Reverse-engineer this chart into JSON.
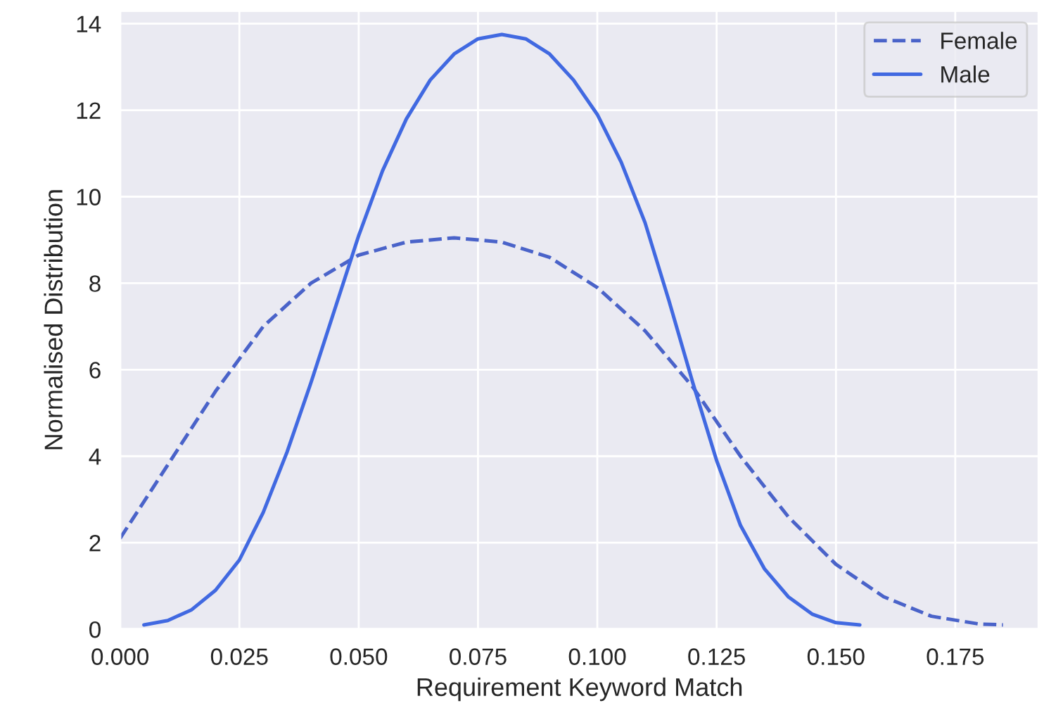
{
  "chart_data": {
    "type": "line",
    "xlabel": "Requirement Keyword Match",
    "ylabel": "Normalised Distribution",
    "xlim": [
      0,
      0.1925
    ],
    "xticks": [
      {
        "value": 0,
        "label": "0.000"
      },
      {
        "value": 0.025,
        "label": "0.025"
      },
      {
        "value": 0.05,
        "label": "0.050"
      },
      {
        "value": 0.075,
        "label": "0.075"
      },
      {
        "value": 0.1,
        "label": "0.100"
      },
      {
        "value": 0.125,
        "label": "0.125"
      },
      {
        "value": 0.15,
        "label": "0.150"
      },
      {
        "value": 0.175,
        "label": "0.175"
      }
    ],
    "ylim": [
      0,
      14.3
    ],
    "yticks": [
      0,
      2,
      4,
      6,
      8,
      10,
      12,
      14
    ],
    "grid": true,
    "legend": "top right",
    "series": [
      {
        "name": "Female",
        "color": "#4a63c9",
        "line_style": "dashed",
        "x": [
          0,
          0.01,
          0.02,
          0.03,
          0.04,
          0.05,
          0.06,
          0.07,
          0.08,
          0.09,
          0.1,
          0.11,
          0.12,
          0.13,
          0.14,
          0.15,
          0.16,
          0.17,
          0.18,
          0.185
        ],
        "values": [
          2.1,
          3.8,
          5.5,
          7.0,
          8.0,
          8.65,
          8.95,
          9.05,
          8.95,
          8.6,
          7.9,
          6.9,
          5.6,
          4.0,
          2.6,
          1.5,
          0.75,
          0.3,
          0.12,
          0.1
        ]
      },
      {
        "name": "Male",
        "color": "#4169e1",
        "line_style": "solid",
        "x": [
          0.005,
          0.01,
          0.015,
          0.02,
          0.025,
          0.03,
          0.035,
          0.04,
          0.045,
          0.05,
          0.055,
          0.06,
          0.065,
          0.07,
          0.075,
          0.08,
          0.085,
          0.09,
          0.095,
          0.1,
          0.105,
          0.11,
          0.115,
          0.12,
          0.125,
          0.13,
          0.135,
          0.14,
          0.145,
          0.15,
          0.155
        ],
        "values": [
          0.1,
          0.2,
          0.45,
          0.9,
          1.6,
          2.7,
          4.1,
          5.7,
          7.4,
          9.1,
          10.6,
          11.8,
          12.7,
          13.3,
          13.65,
          13.75,
          13.65,
          13.3,
          12.7,
          11.9,
          10.8,
          9.4,
          7.6,
          5.7,
          3.9,
          2.4,
          1.4,
          0.75,
          0.35,
          0.15,
          0.1
        ]
      }
    ]
  }
}
